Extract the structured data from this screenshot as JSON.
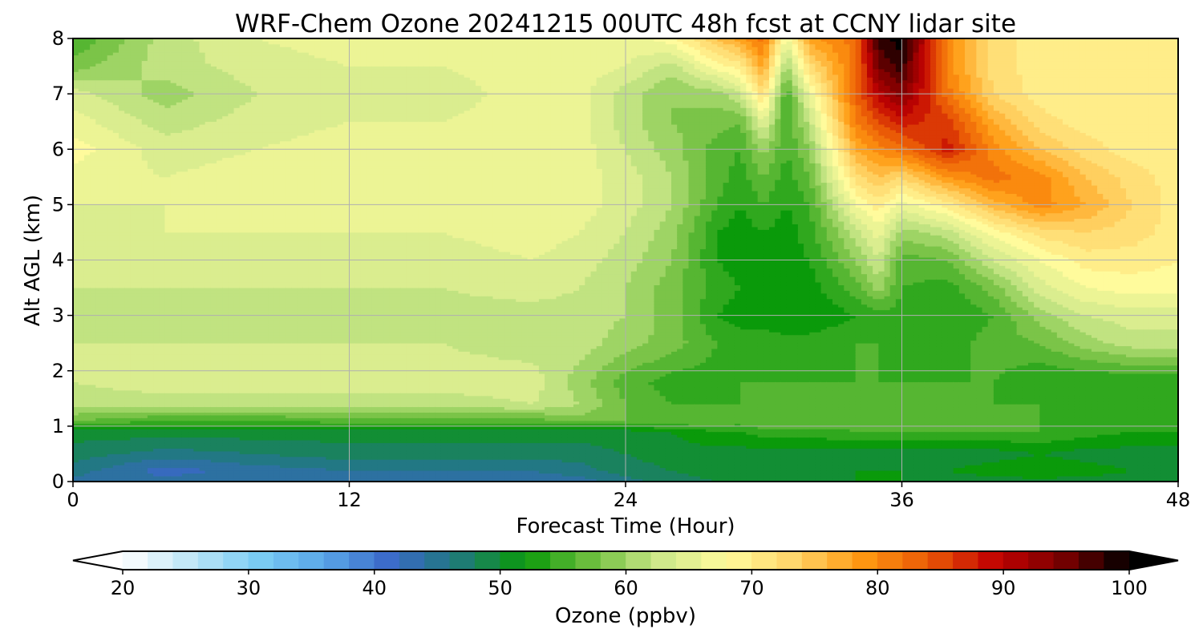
{
  "chart_data": {
    "type": "heatmap",
    "title": "WRF-Chem Ozone  20241215 00UTC 48h fcst at CCNY lidar site",
    "xlabel": "Forecast Time (Hour)",
    "ylabel": "Alt AGL (km)",
    "xlim": [
      0,
      48
    ],
    "ylim": [
      0,
      8
    ],
    "xticks": [
      "0",
      "12",
      "24",
      "36",
      "48"
    ],
    "yticks": [
      "0",
      "1",
      "2",
      "3",
      "4",
      "5",
      "6",
      "7",
      "8"
    ],
    "grid": true,
    "colorbar": {
      "label": "Ozone  (ppbv)",
      "range": [
        20,
        100
      ],
      "ticks": [
        "20",
        "30",
        "40",
        "50",
        "60",
        "70",
        "80",
        "90",
        "100"
      ],
      "extend": "both",
      "colors": [
        "#ffffff",
        "#bfe6f6",
        "#7ccdf4",
        "#5aa7e8",
        "#3a68c8",
        "#1f7a7a",
        "#0a9a0a",
        "#6fbf3f",
        "#cde88a",
        "#fffb9c",
        "#ffd66a",
        "#ff9a12",
        "#ea5a06",
        "#c20202",
        "#7a0000",
        "#000000"
      ]
    },
    "z_hours": [
      0,
      4,
      8,
      12,
      16,
      20,
      22,
      24,
      26,
      28,
      29,
      30,
      31,
      32,
      34,
      35,
      36,
      38,
      40,
      42,
      44,
      46,
      48
    ],
    "z_altitudes_km": [
      0,
      0.2,
      0.5,
      0.9,
      1.1,
      1.4,
      1.8,
      2.5,
      3,
      3.5,
      4,
      4.5,
      5,
      5.5,
      6,
      6.5,
      7,
      7.5,
      8
    ],
    "z_ppbv": [
      [
        44,
        44,
        44,
        44,
        44,
        44,
        44,
        46,
        48,
        49,
        49,
        49,
        49,
        50,
        51,
        51,
        51,
        50,
        50,
        50,
        50,
        50,
        50
      ],
      [
        46,
        42,
        44,
        45,
        45,
        45,
        46,
        48,
        49,
        50,
        50,
        50,
        50,
        50,
        51,
        51,
        51,
        51,
        52,
        53,
        52,
        51,
        51
      ],
      [
        48,
        46,
        47,
        48,
        48,
        48,
        48,
        49,
        50,
        50,
        50,
        50,
        50,
        50,
        50,
        50,
        50,
        50,
        50,
        51,
        50,
        50,
        50
      ],
      [
        50,
        50,
        50,
        50,
        50,
        50,
        50,
        50,
        51,
        53,
        53,
        54,
        54,
        54,
        55,
        55,
        55,
        55,
        55,
        55,
        54,
        53,
        53
      ],
      [
        57,
        55,
        55,
        56,
        56,
        56,
        58,
        57,
        57,
        57,
        56,
        57,
        57,
        57,
        56,
        56,
        55,
        56,
        56,
        55,
        54,
        53,
        53
      ],
      [
        62,
        62,
        62,
        62,
        62,
        63,
        61,
        57,
        55,
        55,
        55,
        55,
        55,
        55,
        55,
        55,
        56,
        56,
        55,
        55,
        54,
        54,
        54
      ],
      [
        63,
        64,
        64,
        64,
        64,
        64,
        60,
        56,
        54,
        54,
        55,
        55,
        55,
        55,
        55,
        55,
        55,
        55,
        55,
        53,
        53,
        53,
        53
      ],
      [
        63,
        63,
        63,
        63,
        63,
        62,
        62,
        60,
        58,
        55,
        54,
        54,
        54,
        54,
        55,
        55,
        54,
        54,
        56,
        57,
        60,
        62,
        62
      ],
      [
        63,
        62,
        62,
        62,
        62,
        62,
        62,
        61,
        58,
        53,
        52,
        52,
        51,
        51,
        53,
        54,
        54,
        53,
        55,
        60,
        63,
        64,
        64
      ],
      [
        63,
        63,
        63,
        63,
        63,
        64,
        63,
        61,
        58,
        54,
        53,
        53,
        52,
        52,
        56,
        60,
        55,
        54,
        58,
        64,
        67,
        68,
        68
      ],
      [
        63,
        64,
        64,
        64,
        64,
        65,
        64,
        62,
        59,
        53,
        52,
        53,
        52,
        53,
        59,
        63,
        56,
        57,
        63,
        67,
        70,
        70,
        69
      ],
      [
        64,
        65,
        65,
        65,
        65,
        66,
        65,
        63,
        60,
        53,
        52,
        53,
        52,
        54,
        62,
        66,
        60,
        62,
        68,
        72,
        73,
        72,
        70
      ],
      [
        65,
        65,
        66,
        66,
        66,
        66,
        66,
        64,
        61,
        55,
        53,
        55,
        53,
        55,
        67,
        70,
        66,
        70,
        76,
        80,
        77,
        73,
        70
      ],
      [
        66,
        65,
        66,
        66,
        66,
        66,
        66,
        64,
        61,
        56,
        54,
        57,
        54,
        57,
        72,
        75,
        73,
        79,
        82,
        80,
        75,
        72,
        70
      ],
      [
        68,
        64,
        65,
        66,
        66,
        66,
        66,
        63,
        60,
        56,
        55,
        60,
        55,
        59,
        77,
        80,
        82,
        88,
        80,
        75,
        72,
        70,
        70
      ],
      [
        66,
        62,
        64,
        65,
        65,
        66,
        66,
        62,
        59,
        58,
        57,
        65,
        55,
        62,
        81,
        85,
        88,
        86,
        77,
        72,
        70,
        70,
        69
      ],
      [
        64,
        60,
        63,
        64,
        64,
        66,
        66,
        62,
        59,
        60,
        63,
        72,
        55,
        66,
        83,
        90,
        94,
        82,
        73,
        70,
        69,
        69,
        69
      ],
      [
        58,
        62,
        64,
        65,
        65,
        66,
        66,
        65,
        62,
        68,
        70,
        78,
        60,
        72,
        82,
        95,
        98,
        80,
        72,
        70,
        70,
        70,
        70
      ],
      [
        55,
        62,
        65,
        66,
        65,
        66,
        66,
        66,
        68,
        75,
        78,
        82,
        66,
        78,
        82,
        98,
        100,
        80,
        72,
        70,
        70,
        70,
        70
      ]
    ]
  }
}
